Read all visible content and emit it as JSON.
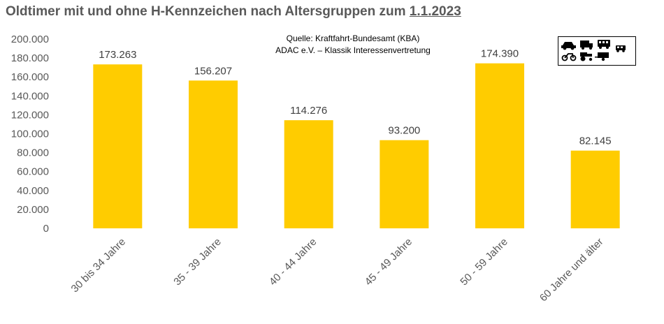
{
  "title_main": "Oldtimer mit und ohne H-Kennzeichen nach Altersgruppen zum ",
  "title_date": "1.1.2023",
  "source_line1": "Quelle: Kraftfahrt-Bundesamt (KBA)",
  "source_line2": "ADAC e.V. – Klassik Interessenvertretung",
  "legend_icons": [
    "car-icon",
    "truck-icon",
    "bus-icon",
    "motorcycle-icon",
    "tractor-icon",
    "trailer-icon",
    "van-icon"
  ],
  "colors": {
    "bar": "#FFCC00",
    "title": "#595959"
  },
  "chart_data": {
    "type": "bar",
    "categories": [
      "30 bis 34 Jahre",
      "35 - 39 Jahre",
      "40 - 44 Jahre",
      "45 - 49 Jahre",
      "50 - 59 Jahre",
      "60 Jahre und älter"
    ],
    "values": [
      173263,
      156207,
      114276,
      93200,
      174390,
      82145
    ],
    "value_labels": [
      "173.263",
      "156.207",
      "114.276",
      "93.200",
      "174.390",
      "82.145"
    ],
    "ylim": [
      0,
      200000
    ],
    "yticks": [
      0,
      20000,
      40000,
      60000,
      80000,
      100000,
      120000,
      140000,
      160000,
      180000,
      200000
    ],
    "ytick_labels": [
      "0",
      "20.000",
      "40.000",
      "60.000",
      "80.000",
      "100.000",
      "120.000",
      "140.000",
      "160.000",
      "180.000",
      "200.000"
    ],
    "grid": false
  }
}
